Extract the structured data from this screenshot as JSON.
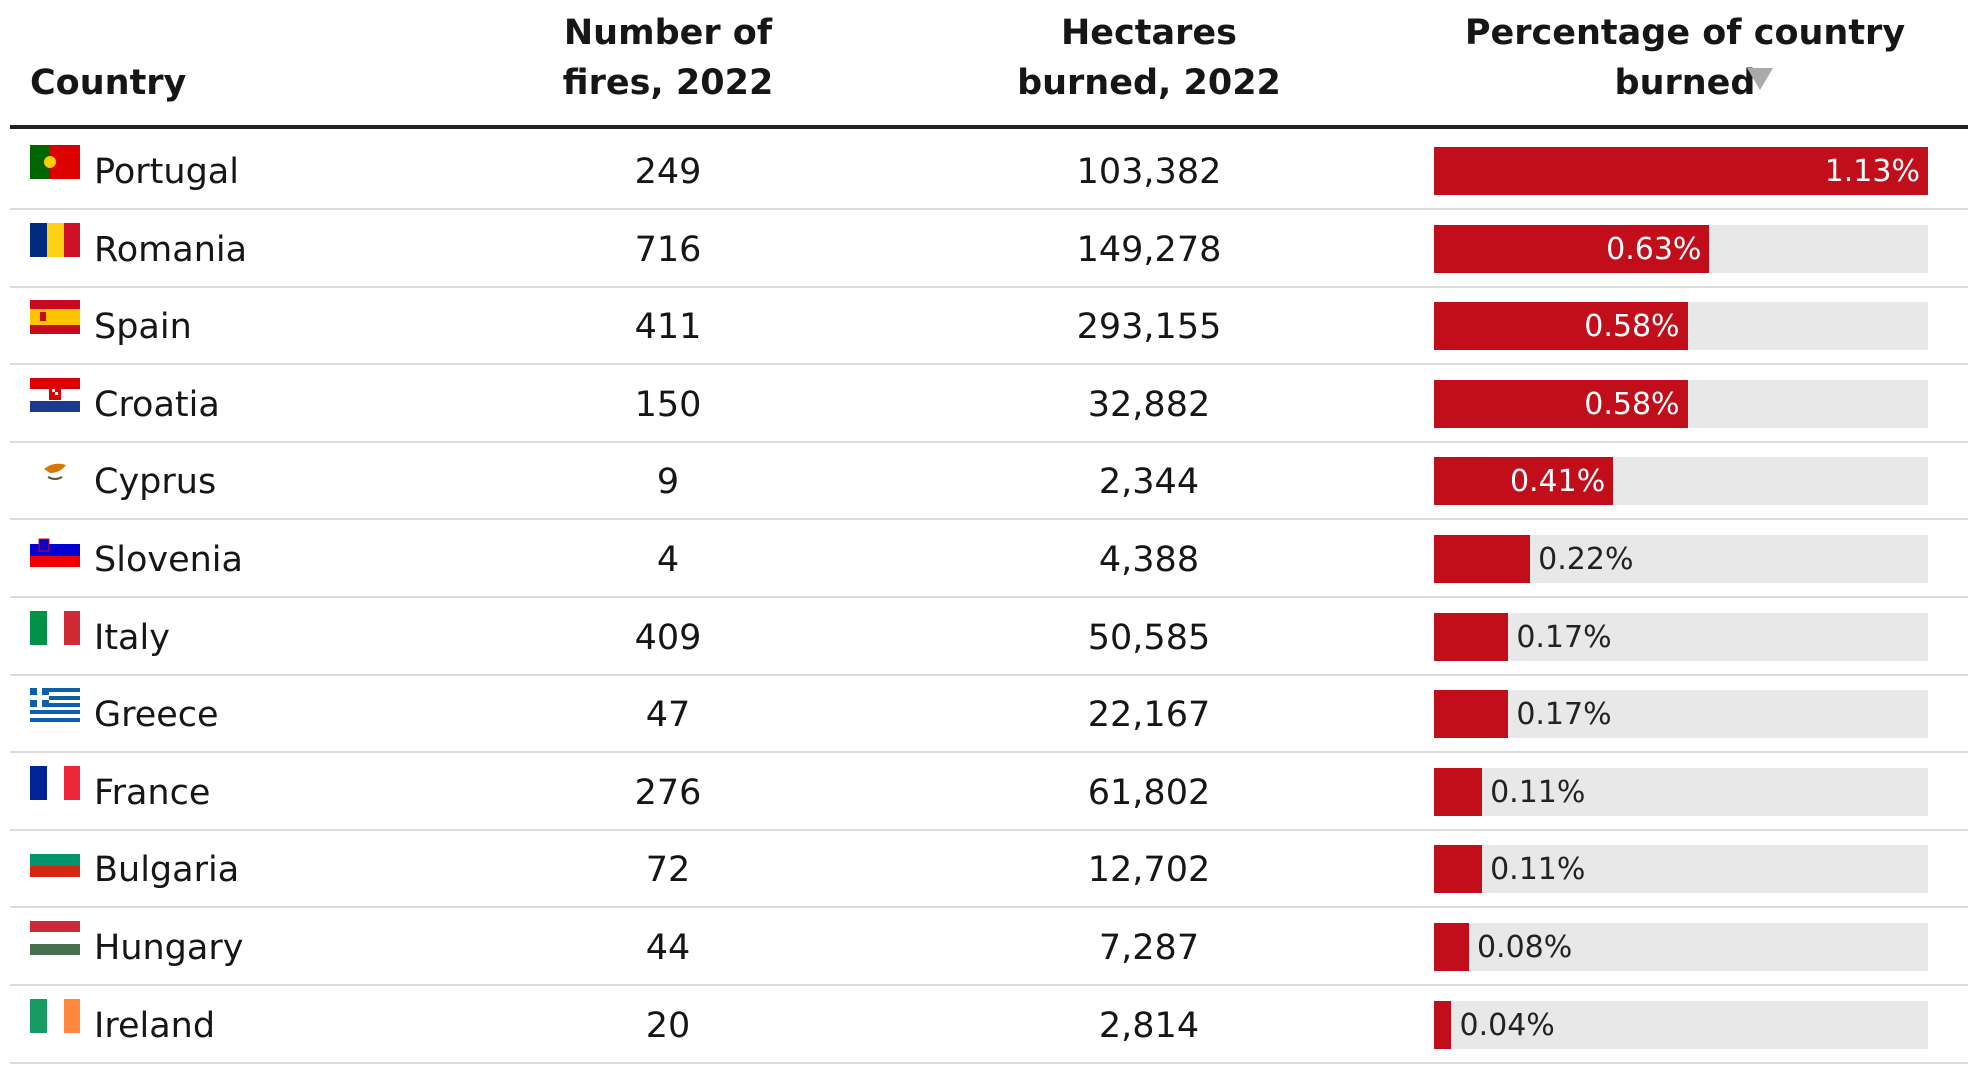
{
  "table": {
    "columns": [
      "Country",
      "Number of fires, 2022",
      "Hectares burned, 2022",
      "Percentage of country burned"
    ],
    "rows": [
      {
        "country": "Portugal",
        "fires": 249,
        "hectares": "103,382",
        "percent": {
          "value": 1.13,
          "label": "1.13%"
        }
      },
      {
        "country": "Romania",
        "fires": 716,
        "hectares": "149,278",
        "percent": {
          "value": 0.63,
          "label": "0.63%"
        }
      },
      {
        "country": "Spain",
        "fires": 411,
        "hectares": "293,155",
        "percent": {
          "value": 0.58,
          "label": "0.58%"
        }
      },
      {
        "country": "Croatia",
        "fires": 150,
        "hectares": "32,882",
        "percent": {
          "value": 0.58,
          "label": "0.58%"
        }
      },
      {
        "country": "Cyprus",
        "fires": 9,
        "hectares": "2,344",
        "percent": {
          "value": 0.41,
          "label": "0.41%"
        }
      },
      {
        "country": "Slovenia",
        "fires": 4,
        "hectares": "4,388",
        "percent": {
          "value": 0.22,
          "label": "0.22%"
        }
      },
      {
        "country": "Italy",
        "fires": 409,
        "hectares": "50,585",
        "percent": {
          "value": 0.17,
          "label": "0.17%"
        }
      },
      {
        "country": "Greece",
        "fires": 47,
        "hectares": "22,167",
        "percent": {
          "value": 0.17,
          "label": "0.17%"
        }
      },
      {
        "country": "France",
        "fires": 276,
        "hectares": "61,802",
        "percent": {
          "value": 0.11,
          "label": "0.11%"
        }
      },
      {
        "country": "Bulgaria",
        "fires": 72,
        "hectares": "12,702",
        "percent": {
          "value": 0.11,
          "label": "0.11%"
        }
      },
      {
        "country": "Hungary",
        "fires": 44,
        "hectares": "7,287",
        "percent": {
          "value": 0.08,
          "label": "0.08%"
        }
      },
      {
        "country": "Ireland",
        "fires": 20,
        "hectares": "2,814",
        "percent": {
          "value": 0.04,
          "label": "0.04%"
        }
      }
    ]
  }
}
